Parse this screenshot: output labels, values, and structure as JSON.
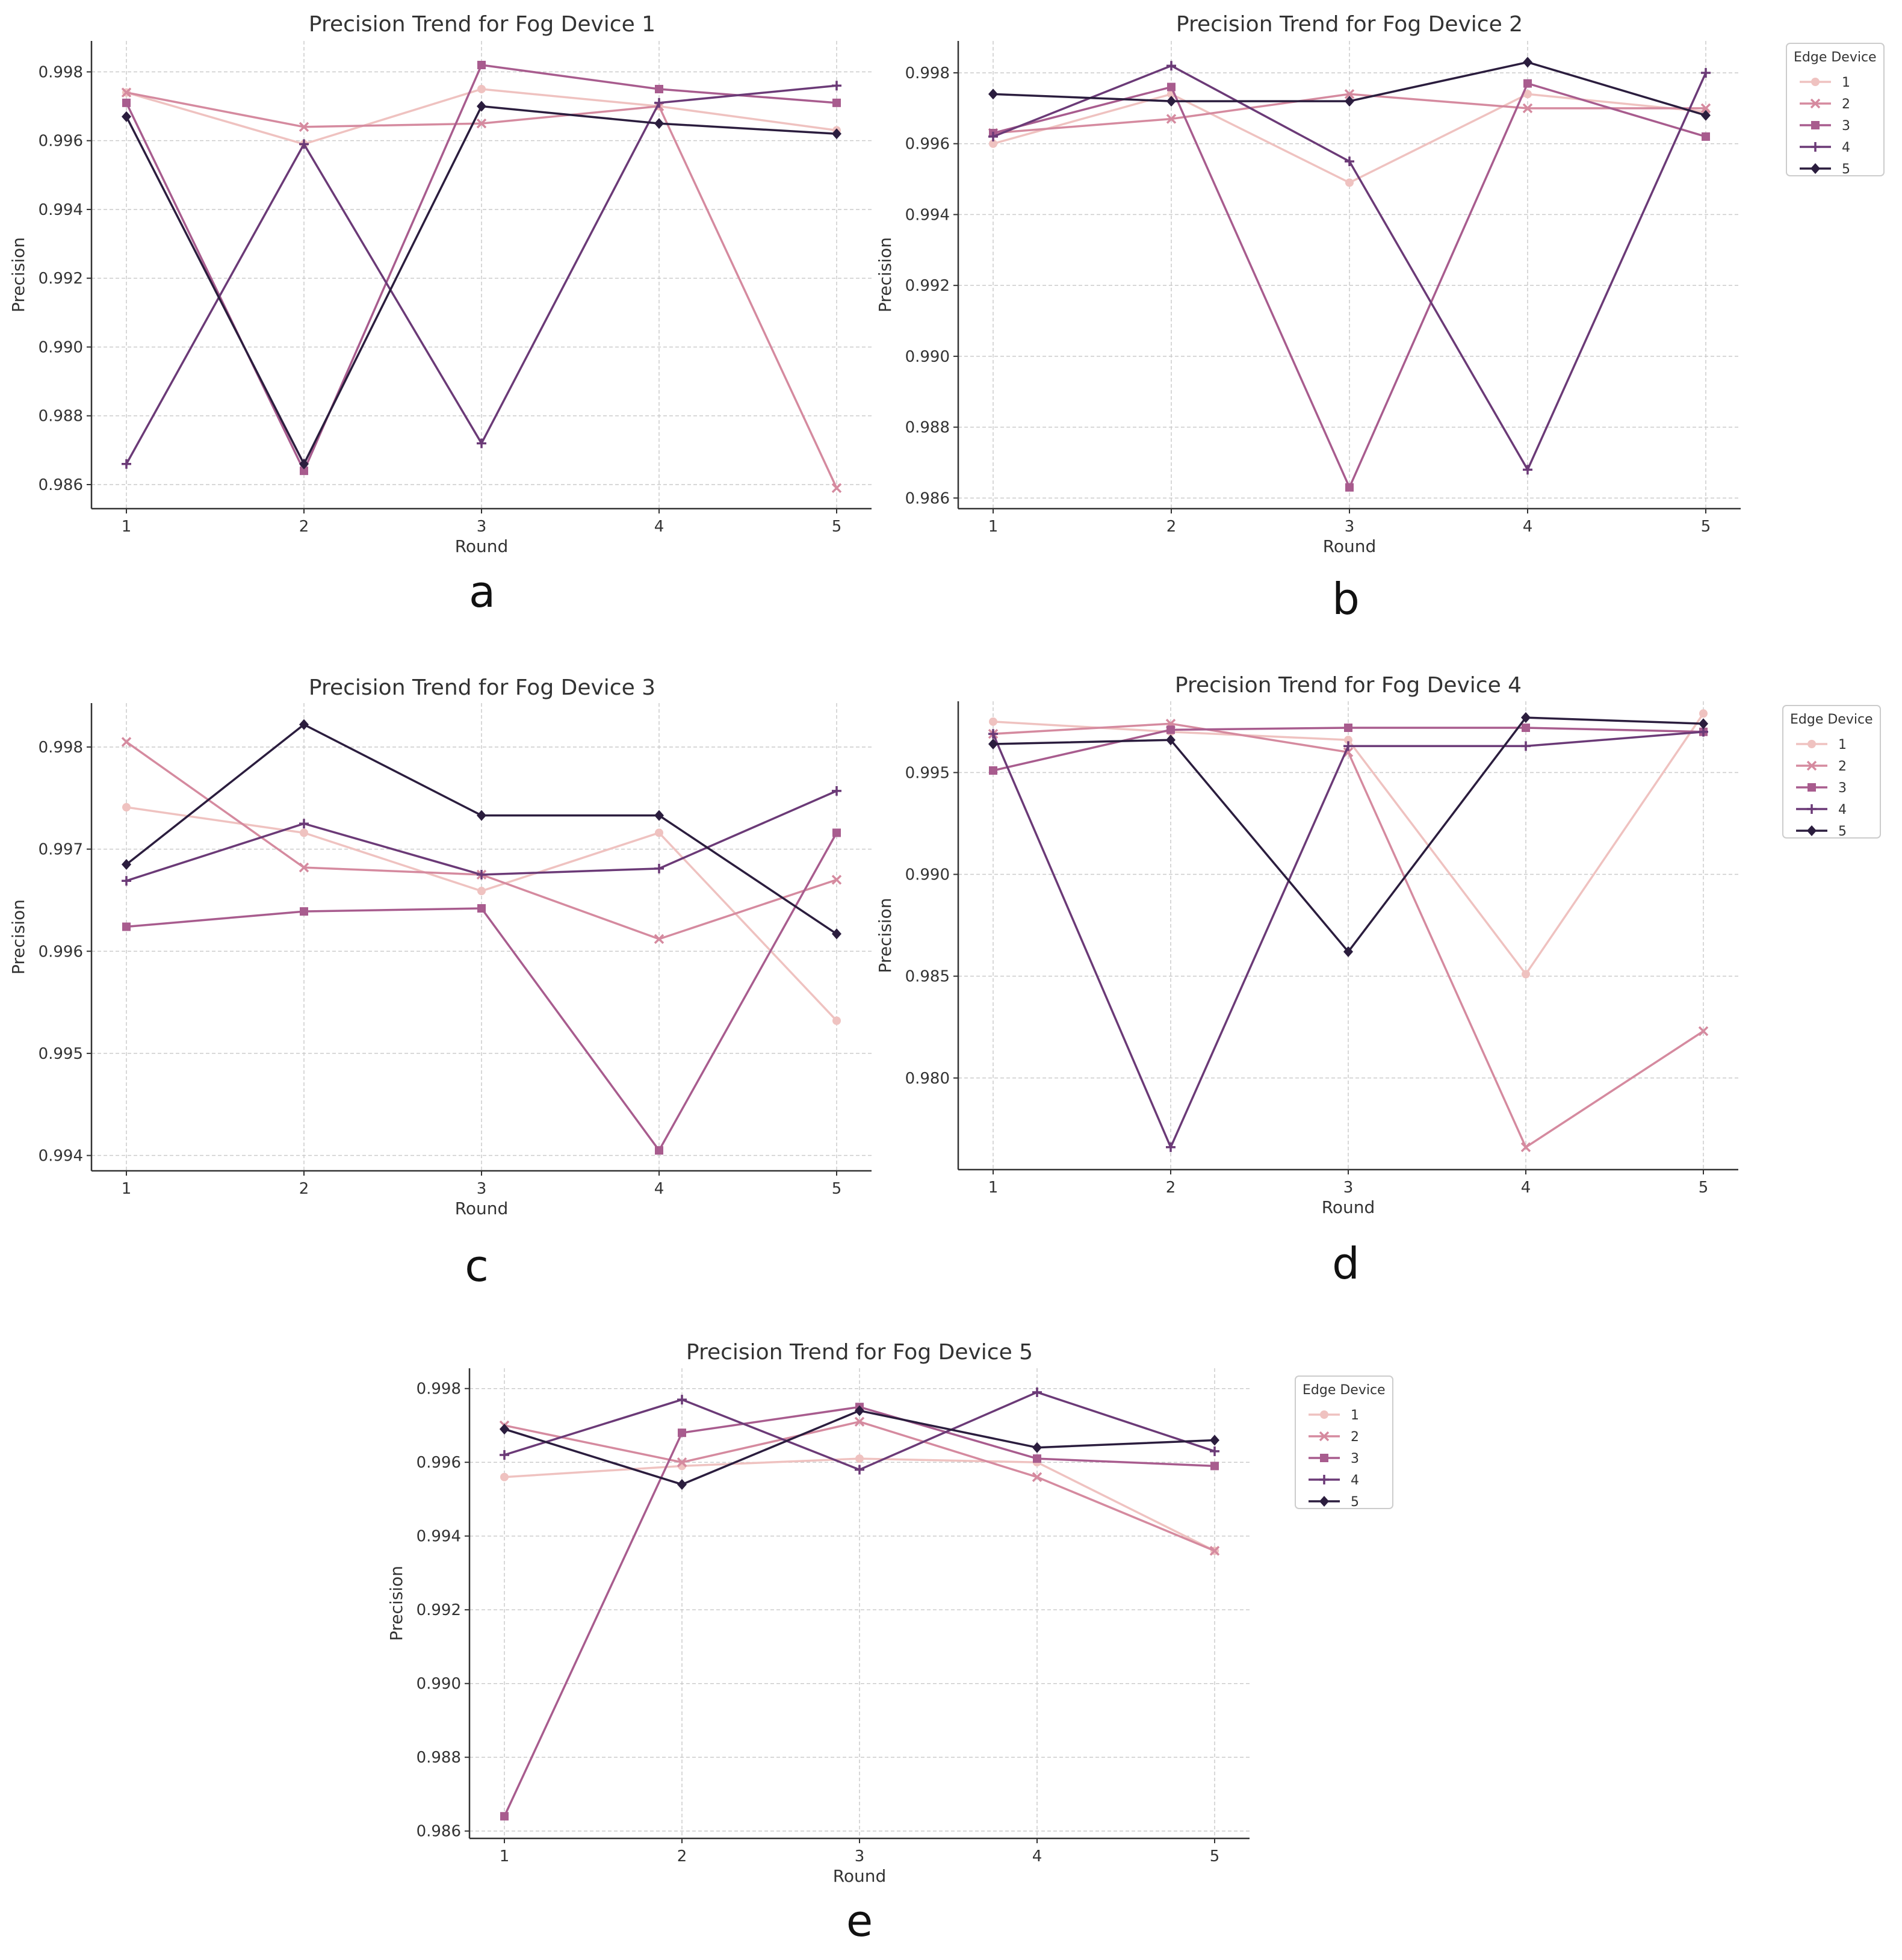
{
  "figure": {
    "colors": [
      "#efc2c0",
      "#d58a9f",
      "#a85c8e",
      "#6b3a77",
      "#2b1d3e"
    ],
    "legend_title": "Edge Device",
    "series_names": [
      "1",
      "2",
      "3",
      "4",
      "5"
    ]
  },
  "chart_data": [
    {
      "type": "line",
      "panel_label": "a",
      "title": "Precision Trend for Fog Device 1",
      "xlabel": "Round",
      "ylabel": "Precision",
      "x": [
        1,
        2,
        3,
        4,
        5
      ],
      "xticks": [
        "1",
        "2",
        "3",
        "4",
        "5"
      ],
      "ylim": [
        0.9853,
        0.9989
      ],
      "yticks": [
        0.986,
        0.988,
        0.99,
        0.992,
        0.994,
        0.996,
        0.998
      ],
      "ytick_labels": [
        "0.986",
        "0.988",
        "0.990",
        "0.992",
        "0.994",
        "0.996",
        "0.998"
      ],
      "legend": false,
      "series": [
        {
          "name": "1",
          "values": [
            0.9974,
            0.9959,
            0.9975,
            0.997,
            0.9963
          ]
        },
        {
          "name": "2",
          "values": [
            0.9974,
            0.9964,
            0.9965,
            0.997,
            0.9859
          ]
        },
        {
          "name": "3",
          "values": [
            0.9971,
            0.9864,
            0.9982,
            0.9975,
            0.9971
          ]
        },
        {
          "name": "4",
          "values": [
            0.9866,
            0.9959,
            0.9872,
            0.9971,
            0.9976
          ]
        },
        {
          "name": "5",
          "values": [
            0.9967,
            0.9866,
            0.997,
            0.9965,
            0.9962
          ]
        }
      ]
    },
    {
      "type": "line",
      "panel_label": "b",
      "title": "Precision Trend for Fog Device 2",
      "xlabel": "Round",
      "ylabel": "Precision",
      "x": [
        1,
        2,
        3,
        4,
        5
      ],
      "xticks": [
        "1",
        "2",
        "3",
        "4",
        "5"
      ],
      "ylim": [
        0.9857,
        0.9989
      ],
      "yticks": [
        0.986,
        0.988,
        0.99,
        0.992,
        0.994,
        0.996,
        0.998
      ],
      "ytick_labels": [
        "0.986",
        "0.988",
        "0.990",
        "0.992",
        "0.994",
        "0.996",
        "0.998"
      ],
      "legend": true,
      "series": [
        {
          "name": "1",
          "values": [
            0.996,
            0.9974,
            0.9949,
            0.9974,
            0.9969
          ]
        },
        {
          "name": "2",
          "values": [
            0.9963,
            0.9967,
            0.9974,
            0.997,
            0.997
          ]
        },
        {
          "name": "3",
          "values": [
            0.9963,
            0.9976,
            0.9863,
            0.9977,
            0.9962
          ]
        },
        {
          "name": "4",
          "values": [
            0.9962,
            0.9982,
            0.9955,
            0.9868,
            0.998
          ]
        },
        {
          "name": "5",
          "values": [
            0.9974,
            0.9972,
            0.9972,
            0.9983,
            0.9968
          ]
        }
      ]
    },
    {
      "type": "line",
      "panel_label": "c",
      "title": "Precision Trend for Fog Device 3",
      "xlabel": "Round",
      "ylabel": "Precision",
      "x": [
        1,
        2,
        3,
        4,
        5
      ],
      "xticks": [
        "1",
        "2",
        "3",
        "4",
        "5"
      ],
      "ylim": [
        0.99385,
        0.99843
      ],
      "yticks": [
        0.994,
        0.995,
        0.996,
        0.997,
        0.998
      ],
      "ytick_labels": [
        "0.994",
        "0.995",
        "0.996",
        "0.997",
        "0.998"
      ],
      "legend": false,
      "series": [
        {
          "name": "1",
          "values": [
            0.99741,
            0.99716,
            0.99659,
            0.99716,
            0.99532
          ]
        },
        {
          "name": "2",
          "values": [
            0.99805,
            0.99682,
            0.99675,
            0.99612,
            0.9967
          ]
        },
        {
          "name": "3",
          "values": [
            0.99624,
            0.99639,
            0.99642,
            0.99405,
            0.99716
          ]
        },
        {
          "name": "4",
          "values": [
            0.99669,
            0.99725,
            0.99675,
            0.99681,
            0.99757
          ]
        },
        {
          "name": "5",
          "values": [
            0.99685,
            0.99822,
            0.99733,
            0.99733,
            0.99617
          ]
        }
      ]
    },
    {
      "type": "line",
      "panel_label": "d",
      "title": "Precision Trend for Fog Device 4",
      "xlabel": "Round",
      "ylabel": "Precision",
      "x": [
        1,
        2,
        3,
        4,
        5
      ],
      "xticks": [
        "1",
        "2",
        "3",
        "4",
        "5"
      ],
      "ylim": [
        0.9755,
        0.9985
      ],
      "yticks": [
        0.98,
        0.985,
        0.99,
        0.995
      ],
      "ytick_labels": [
        "0.980",
        "0.985",
        "0.990",
        "0.995"
      ],
      "legend": true,
      "series": [
        {
          "name": "1",
          "values": [
            0.9975,
            0.997,
            0.9966,
            0.9851,
            0.9979
          ]
        },
        {
          "name": "2",
          "values": [
            0.9969,
            0.9974,
            0.996,
            0.9766,
            0.9823
          ]
        },
        {
          "name": "3",
          "values": [
            0.9951,
            0.9971,
            0.9972,
            0.9972,
            0.997
          ]
        },
        {
          "name": "4",
          "values": [
            0.9969,
            0.9766,
            0.9963,
            0.9963,
            0.997
          ]
        },
        {
          "name": "5",
          "values": [
            0.9964,
            0.9966,
            0.9862,
            0.9977,
            0.9974
          ]
        }
      ]
    },
    {
      "type": "line",
      "panel_label": "e",
      "title": "Precision Trend for Fog Device 5",
      "xlabel": "Round",
      "ylabel": "Precision",
      "x": [
        1,
        2,
        3,
        4,
        5
      ],
      "xticks": [
        "1",
        "2",
        "3",
        "4",
        "5"
      ],
      "ylim": [
        0.9858,
        0.99855
      ],
      "yticks": [
        0.986,
        0.988,
        0.99,
        0.992,
        0.994,
        0.996,
        0.998
      ],
      "ytick_labels": [
        "0.986",
        "0.988",
        "0.990",
        "0.992",
        "0.994",
        "0.996",
        "0.998"
      ],
      "legend": true,
      "series": [
        {
          "name": "1",
          "values": [
            0.9956,
            0.9959,
            0.9961,
            0.996,
            0.9936
          ]
        },
        {
          "name": "2",
          "values": [
            0.997,
            0.996,
            0.9971,
            0.9956,
            0.9936
          ]
        },
        {
          "name": "3",
          "values": [
            0.9864,
            0.9968,
            0.9975,
            0.9961,
            0.9959
          ]
        },
        {
          "name": "4",
          "values": [
            0.9962,
            0.9977,
            0.9958,
            0.9979,
            0.9963
          ]
        },
        {
          "name": "5",
          "values": [
            0.9969,
            0.9954,
            0.9974,
            0.9964,
            0.9966
          ]
        }
      ]
    }
  ]
}
